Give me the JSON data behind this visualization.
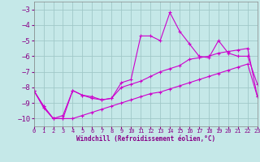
{
  "background_color": "#c5e8e8",
  "grid_color": "#a0c8c8",
  "line_color": "#cc00cc",
  "xlabel": "Windchill (Refroidissement éolien,°C)",
  "xlim": [
    0,
    23
  ],
  "ylim": [
    -10.5,
    -2.5
  ],
  "yticks": [
    -10,
    -9,
    -8,
    -7,
    -6,
    -5,
    -4,
    -3
  ],
  "xticks": [
    0,
    1,
    2,
    3,
    4,
    5,
    6,
    7,
    8,
    9,
    10,
    11,
    12,
    13,
    14,
    15,
    16,
    17,
    18,
    19,
    20,
    21,
    22,
    23
  ],
  "line1_x": [
    0,
    1,
    2,
    3,
    4,
    5,
    6,
    7,
    8,
    9,
    10,
    11,
    12,
    13,
    14,
    15,
    16,
    17,
    18,
    19,
    20,
    21,
    22,
    23
  ],
  "line1_y": [
    -8.2,
    -9.2,
    -10.0,
    -9.8,
    -8.2,
    -8.5,
    -8.7,
    -8.8,
    -8.7,
    -7.7,
    -7.5,
    -4.7,
    -4.7,
    -5.0,
    -3.2,
    -4.4,
    -5.2,
    -6.0,
    -6.1,
    -5.0,
    -5.8,
    -6.0,
    -6.0,
    -7.8
  ],
  "line2_x": [
    0,
    1,
    2,
    3,
    4,
    5,
    6,
    7,
    8,
    9,
    10,
    11,
    12,
    13,
    14,
    15,
    16,
    17,
    18,
    19,
    20,
    21,
    22,
    23
  ],
  "line2_y": [
    -8.2,
    -9.2,
    -10.0,
    -10.0,
    -8.2,
    -8.5,
    -8.6,
    -8.8,
    -8.7,
    -8.0,
    -7.8,
    -7.6,
    -7.3,
    -7.0,
    -6.8,
    -6.6,
    -6.2,
    -6.1,
    -6.0,
    -5.8,
    -5.7,
    -5.6,
    -5.5,
    -8.6
  ],
  "line3_x": [
    0,
    1,
    2,
    3,
    4,
    5,
    6,
    7,
    8,
    9,
    10,
    11,
    12,
    13,
    14,
    15,
    16,
    17,
    18,
    19,
    20,
    21,
    22,
    23
  ],
  "line3_y": [
    -8.2,
    -9.3,
    -10.0,
    -10.0,
    -10.0,
    -9.8,
    -9.6,
    -9.4,
    -9.2,
    -9.0,
    -8.8,
    -8.6,
    -8.4,
    -8.3,
    -8.1,
    -7.9,
    -7.7,
    -7.5,
    -7.3,
    -7.1,
    -6.9,
    -6.7,
    -6.5,
    -8.6
  ],
  "label_color": "#880088",
  "xlabel_fontsize": 5.5,
  "ytick_fontsize": 6.5,
  "xtick_fontsize": 5.0
}
